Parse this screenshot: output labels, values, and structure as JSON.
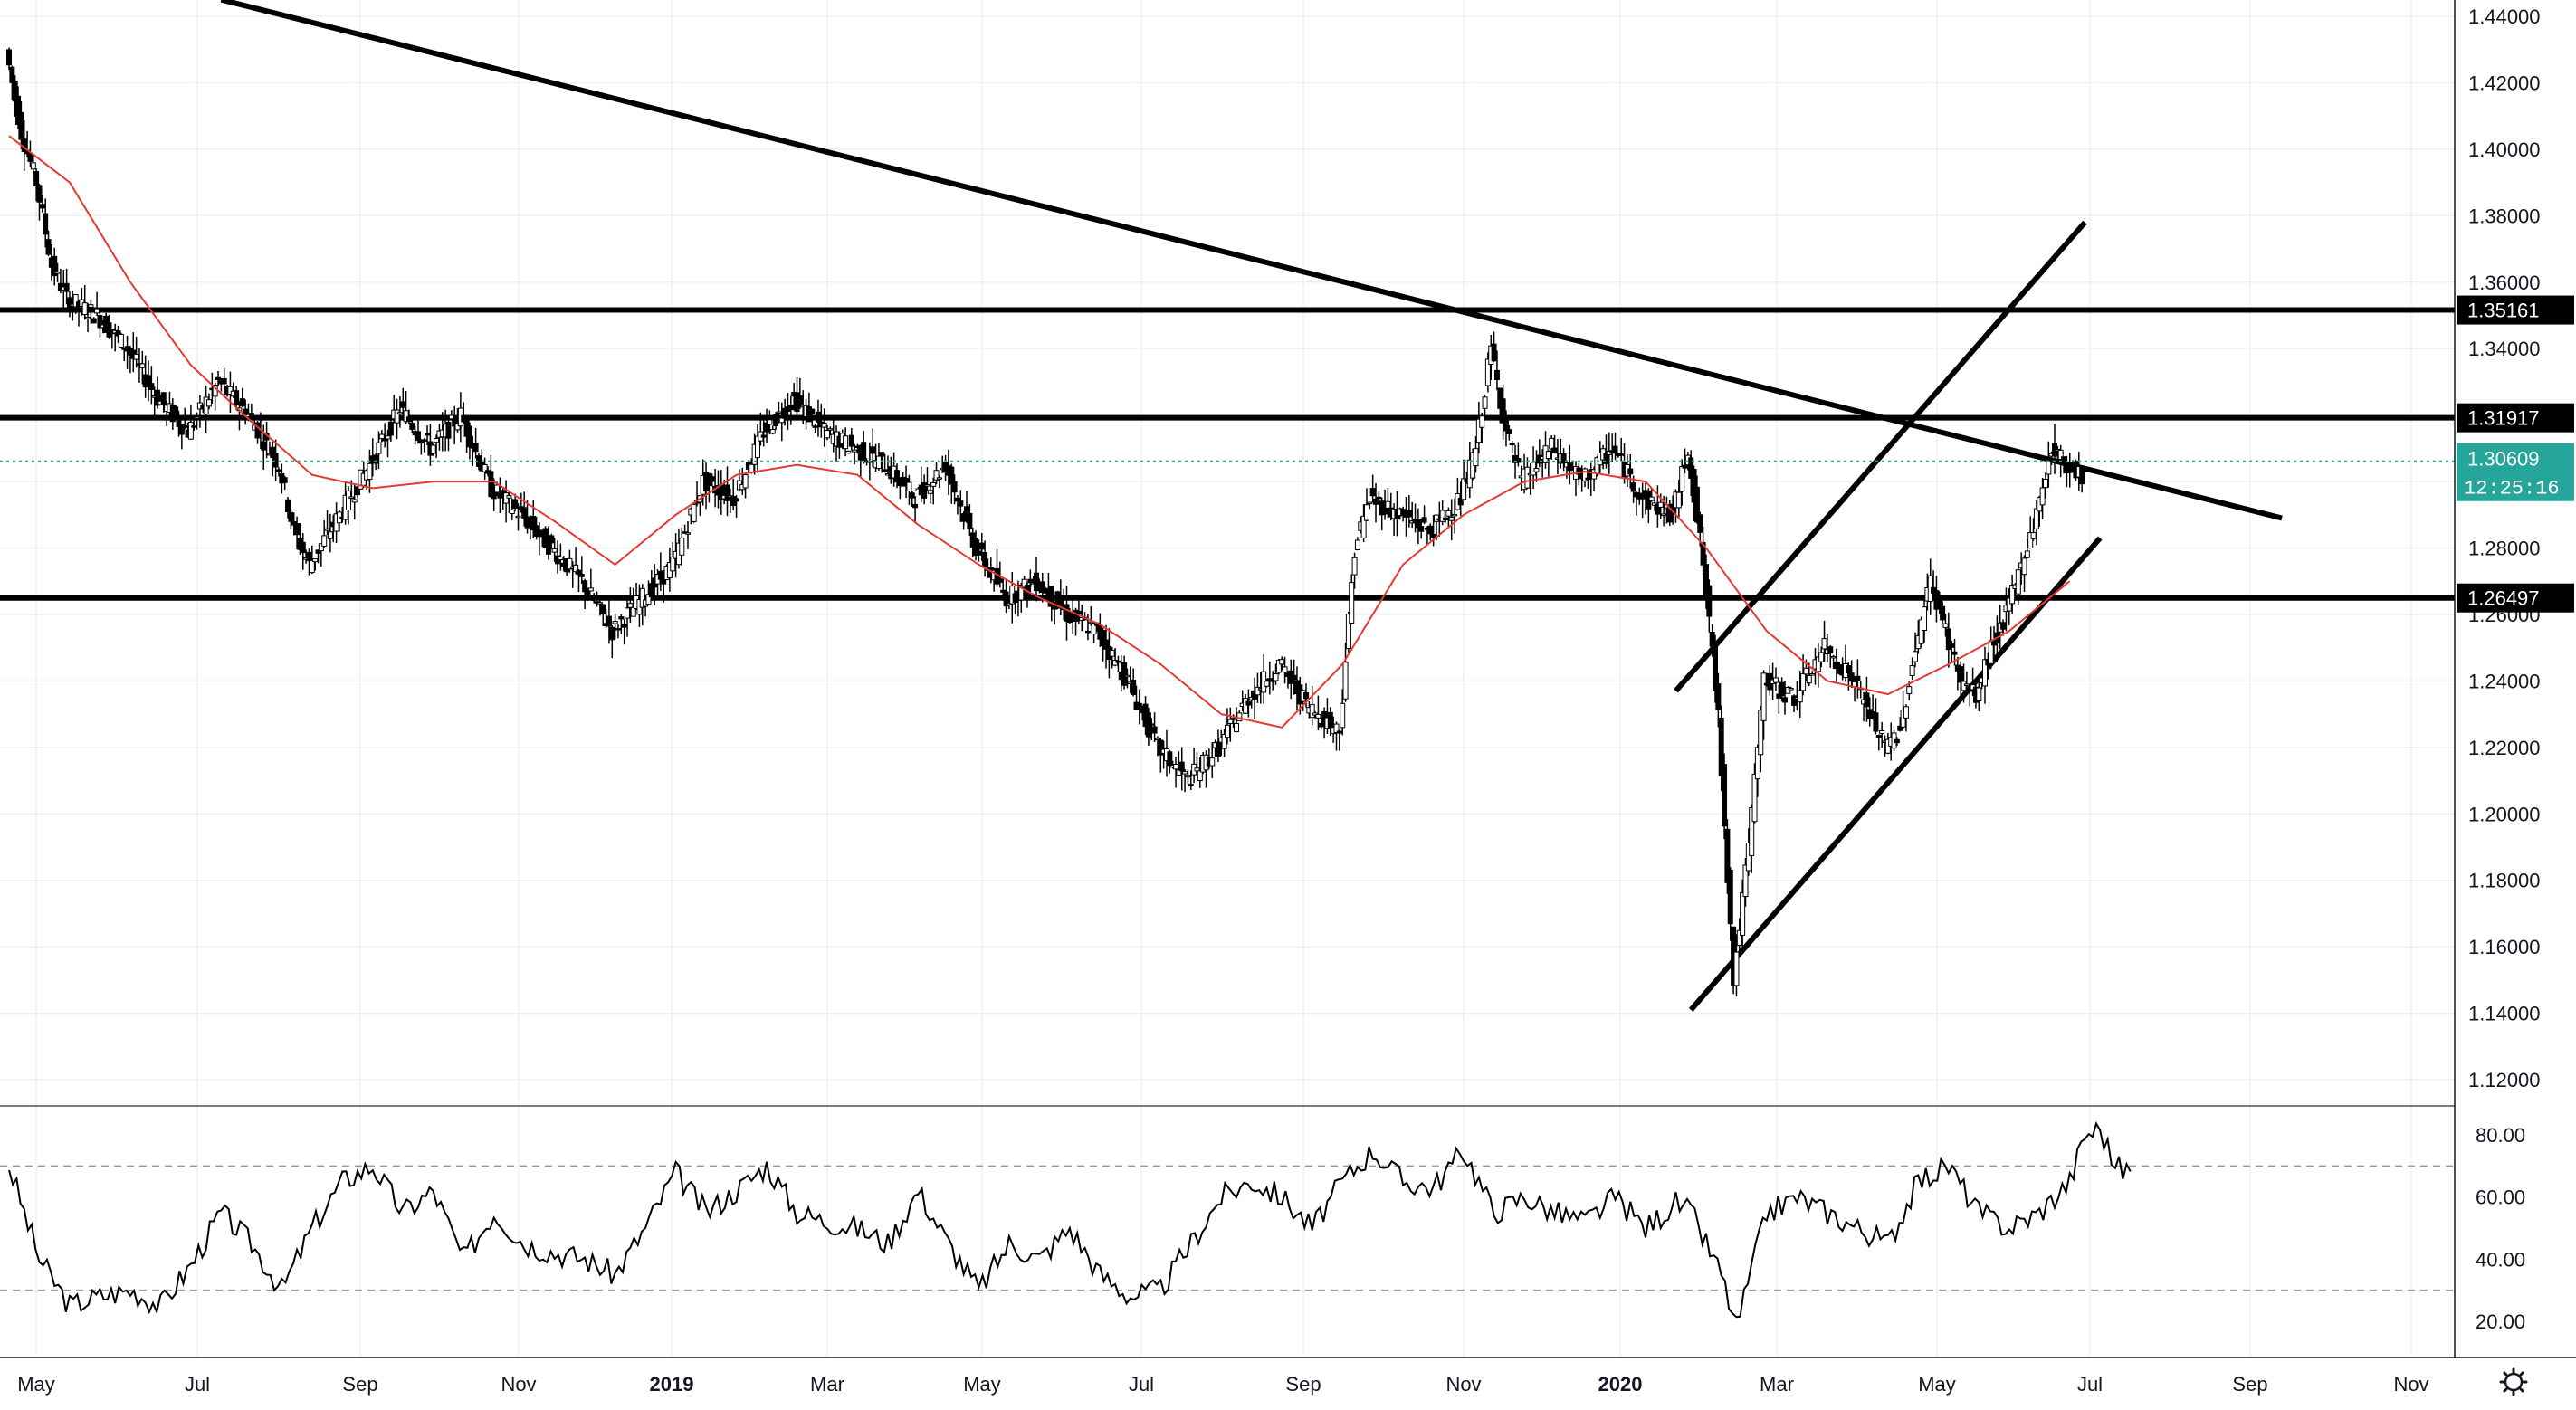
{
  "chart_data": [
    {
      "type": "candlestick",
      "title": "",
      "x_ticks": [
        "May",
        "Jul",
        "Sep",
        "Nov",
        "2019",
        "Mar",
        "May",
        "Jul",
        "Sep",
        "Nov",
        "2020",
        "Mar",
        "May",
        "Jul",
        "Sep",
        "Nov"
      ],
      "y_ticks": [
        "1.44000",
        "1.42000",
        "1.40000",
        "1.38000",
        "1.36000",
        "1.34000",
        "1.32000",
        "1.30000",
        "1.28000",
        "1.26000",
        "1.24000",
        "1.22000",
        "1.20000",
        "1.18000",
        "1.16000",
        "1.14000",
        "1.12000"
      ],
      "ylim": [
        1.107,
        1.445
      ],
      "xlim": [
        0,
        162
      ],
      "x_unit": "weeks since late April 2018",
      "grid": true,
      "price_path": [
        [
          0,
          1.43
        ],
        [
          1,
          1.405
        ],
        [
          2,
          1.39
        ],
        [
          3,
          1.365
        ],
        [
          4,
          1.355
        ],
        [
          6,
          1.35
        ],
        [
          8,
          1.34
        ],
        [
          10,
          1.325
        ],
        [
          12,
          1.315
        ],
        [
          14,
          1.33
        ],
        [
          16,
          1.32
        ],
        [
          18,
          1.305
        ],
        [
          19,
          1.285
        ],
        [
          20,
          1.275
        ],
        [
          22,
          1.29
        ],
        [
          24,
          1.305
        ],
        [
          26,
          1.322
        ],
        [
          28,
          1.31
        ],
        [
          30,
          1.32
        ],
        [
          32,
          1.298
        ],
        [
          34,
          1.29
        ],
        [
          36,
          1.28
        ],
        [
          38,
          1.27
        ],
        [
          40,
          1.255
        ],
        [
          42,
          1.265
        ],
        [
          44,
          1.275
        ],
        [
          46,
          1.3
        ],
        [
          48,
          1.295
        ],
        [
          50,
          1.315
        ],
        [
          52,
          1.325
        ],
        [
          54,
          1.315
        ],
        [
          56,
          1.31
        ],
        [
          58,
          1.305
        ],
        [
          60,
          1.295
        ],
        [
          62,
          1.305
        ],
        [
          64,
          1.28
        ],
        [
          66,
          1.265
        ],
        [
          68,
          1.27
        ],
        [
          70,
          1.26
        ],
        [
          72,
          1.255
        ],
        [
          74,
          1.24
        ],
        [
          76,
          1.22
        ],
        [
          78,
          1.21
        ],
        [
          80,
          1.22
        ],
        [
          82,
          1.235
        ],
        [
          84,
          1.245
        ],
        [
          86,
          1.232
        ],
        [
          88,
          1.225
        ],
        [
          89,
          1.28
        ],
        [
          90,
          1.295
        ],
        [
          92,
          1.29
        ],
        [
          94,
          1.285
        ],
        [
          96,
          1.295
        ],
        [
          97,
          1.31
        ],
        [
          98,
          1.34
        ],
        [
          99,
          1.315
        ],
        [
          100,
          1.3
        ],
        [
          102,
          1.31
        ],
        [
          104,
          1.3
        ],
        [
          106,
          1.31
        ],
        [
          108,
          1.295
        ],
        [
          110,
          1.29
        ],
        [
          111,
          1.31
        ],
        [
          112,
          1.275
        ],
        [
          113,
          1.23
        ],
        [
          114,
          1.15
        ],
        [
          115,
          1.19
        ],
        [
          116,
          1.24
        ],
        [
          118,
          1.235
        ],
        [
          120,
          1.25
        ],
        [
          122,
          1.24
        ],
        [
          124,
          1.22
        ],
        [
          125,
          1.225
        ],
        [
          126,
          1.25
        ],
        [
          127,
          1.27
        ],
        [
          128,
          1.255
        ],
        [
          129,
          1.24
        ],
        [
          130,
          1.235
        ],
        [
          131,
          1.25
        ],
        [
          132,
          1.26
        ],
        [
          133,
          1.275
        ],
        [
          134,
          1.29
        ],
        [
          135,
          1.31
        ],
        [
          136,
          1.305
        ],
        [
          137,
          1.302
        ]
      ],
      "ema_path": [
        [
          0,
          1.404
        ],
        [
          4,
          1.39
        ],
        [
          8,
          1.36
        ],
        [
          12,
          1.335
        ],
        [
          16,
          1.318
        ],
        [
          20,
          1.302
        ],
        [
          24,
          1.298
        ],
        [
          28,
          1.3
        ],
        [
          32,
          1.3
        ],
        [
          36,
          1.288
        ],
        [
          40,
          1.275
        ],
        [
          44,
          1.29
        ],
        [
          48,
          1.302
        ],
        [
          52,
          1.305
        ],
        [
          56,
          1.302
        ],
        [
          60,
          1.287
        ],
        [
          64,
          1.275
        ],
        [
          68,
          1.265
        ],
        [
          72,
          1.257
        ],
        [
          76,
          1.245
        ],
        [
          80,
          1.23
        ],
        [
          84,
          1.226
        ],
        [
          88,
          1.245
        ],
        [
          92,
          1.275
        ],
        [
          96,
          1.29
        ],
        [
          100,
          1.3
        ],
        [
          104,
          1.303
        ],
        [
          108,
          1.3
        ],
        [
          112,
          1.28
        ],
        [
          116,
          1.255
        ],
        [
          120,
          1.24
        ],
        [
          124,
          1.236
        ],
        [
          128,
          1.245
        ],
        [
          132,
          1.255
        ],
        [
          136,
          1.27
        ]
      ],
      "trendlines": [
        {
          "name": "downtrend",
          "points": [
            [
              14,
              1.445
            ],
            [
              96,
              1.351
            ],
            [
              150,
              1.289
            ]
          ]
        },
        {
          "name": "channel-upper",
          "points": [
            [
              110,
              1.237
            ],
            [
              137,
              1.378
            ]
          ]
        },
        {
          "name": "channel-lower",
          "points": [
            [
              111,
              1.141
            ],
            [
              138,
              1.283
            ]
          ]
        }
      ],
      "horizontal_levels": [
        {
          "value": 1.35161,
          "label": "1.35161",
          "color": "#000000"
        },
        {
          "value": 1.31917,
          "label": "1.31917",
          "color": "#000000"
        },
        {
          "value": 1.26497,
          "label": "1.26497",
          "color": "#000000"
        }
      ],
      "last_price": {
        "value": 1.30609,
        "label": "1.30609",
        "countdown": "12:25:16",
        "color": "#26a69a"
      },
      "colors": {
        "candles": "#000000",
        "ema": "#e53935",
        "trendlines": "#000000"
      }
    },
    {
      "type": "line",
      "title": "",
      "y_ticks": [
        "80.00",
        "60.00",
        "40.00",
        "20.00"
      ],
      "ylim": [
        10,
        85
      ],
      "levels": [
        70,
        30
      ],
      "rsi_path": [
        [
          0,
          70
        ],
        [
          2,
          40
        ],
        [
          4,
          25
        ],
        [
          6,
          28
        ],
        [
          8,
          30
        ],
        [
          10,
          25
        ],
        [
          12,
          38
        ],
        [
          14,
          55
        ],
        [
          16,
          45
        ],
        [
          18,
          30
        ],
        [
          20,
          50
        ],
        [
          22,
          65
        ],
        [
          24,
          70
        ],
        [
          26,
          55
        ],
        [
          28,
          62
        ],
        [
          30,
          40
        ],
        [
          32,
          55
        ],
        [
          34,
          45
        ],
        [
          36,
          42
        ],
        [
          38,
          40
        ],
        [
          40,
          35
        ],
        [
          42,
          50
        ],
        [
          44,
          68
        ],
        [
          46,
          55
        ],
        [
          48,
          62
        ],
        [
          50,
          70
        ],
        [
          52,
          55
        ],
        [
          54,
          52
        ],
        [
          56,
          50
        ],
        [
          58,
          45
        ],
        [
          60,
          62
        ],
        [
          62,
          45
        ],
        [
          64,
          30
        ],
        [
          66,
          45
        ],
        [
          68,
          40
        ],
        [
          70,
          50
        ],
        [
          72,
          35
        ],
        [
          74,
          28
        ],
        [
          76,
          30
        ],
        [
          78,
          45
        ],
        [
          80,
          60
        ],
        [
          82,
          65
        ],
        [
          84,
          60
        ],
        [
          86,
          50
        ],
        [
          88,
          65
        ],
        [
          90,
          75
        ],
        [
          92,
          65
        ],
        [
          94,
          63
        ],
        [
          96,
          75
        ],
        [
          98,
          55
        ],
        [
          100,
          60
        ],
        [
          102,
          55
        ],
        [
          104,
          52
        ],
        [
          106,
          60
        ],
        [
          108,
          50
        ],
        [
          110,
          58
        ],
        [
          111,
          55
        ],
        [
          113,
          35
        ],
        [
          114,
          18
        ],
        [
          116,
          55
        ],
        [
          118,
          60
        ],
        [
          120,
          55
        ],
        [
          122,
          50
        ],
        [
          124,
          45
        ],
        [
          126,
          65
        ],
        [
          128,
          70
        ],
        [
          130,
          55
        ],
        [
          132,
          50
        ],
        [
          134,
          55
        ],
        [
          136,
          65
        ],
        [
          137,
          80
        ],
        [
          138,
          82
        ],
        [
          139,
          70
        ],
        [
          140,
          68
        ]
      ]
    }
  ]
}
